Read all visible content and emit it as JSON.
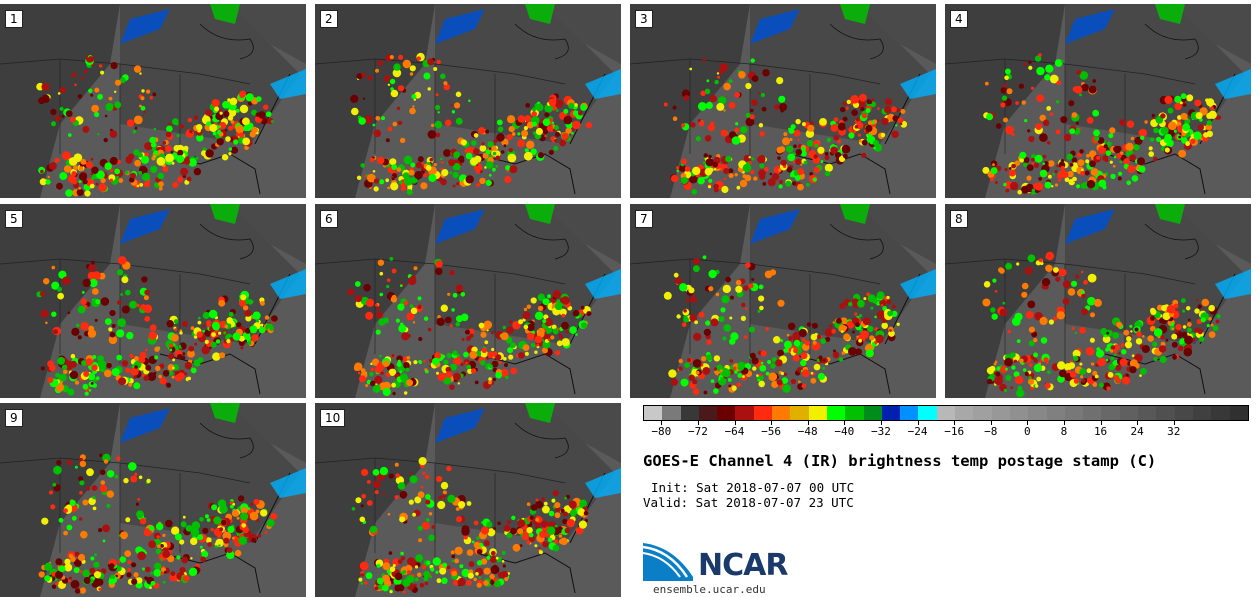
{
  "panels": [
    {
      "label": "1"
    },
    {
      "label": "2"
    },
    {
      "label": "3"
    },
    {
      "label": "4"
    },
    {
      "label": "5"
    },
    {
      "label": "6"
    },
    {
      "label": "7"
    },
    {
      "label": "8"
    },
    {
      "label": "9"
    },
    {
      "label": "10"
    }
  ],
  "colorbar": {
    "colors": [
      "#c8c8c8",
      "#7a7a7a",
      "#383838",
      "#4a1a1a",
      "#6a0000",
      "#aa1010",
      "#ff2a10",
      "#ff7a00",
      "#e0b000",
      "#f0f000",
      "#00ff00",
      "#00c000",
      "#008c1a",
      "#0020b0",
      "#0090ff",
      "#00ffff",
      "#b8b8b8",
      "#a8a8a8",
      "#a0a0a0",
      "#989898",
      "#909090",
      "#888888",
      "#808080",
      "#787878",
      "#707070",
      "#686868",
      "#606060",
      "#585858",
      "#505050",
      "#484848",
      "#404040",
      "#383838",
      "#303030"
    ],
    "tick_labels": [
      "−80",
      "−72",
      "−64",
      "−56",
      "−48",
      "−40",
      "−32",
      "−24",
      "−16",
      "−8",
      "0",
      "8",
      "16",
      "24",
      "32"
    ]
  },
  "title": "GOES-E Channel 4 (IR) brightness temp postage stamp (C)",
  "init": "Init: Sat 2018-07-07 00 UTC",
  "valid": "Valid: Sat 2018-07-07 23 UTC",
  "logo_text": "NCAR",
  "site": "ensemble.ucar.edu",
  "colors": {
    "map_bg": "#555555",
    "logo_blue": "#1a3a6b",
    "logo_cyan": "#0a7fc8"
  }
}
